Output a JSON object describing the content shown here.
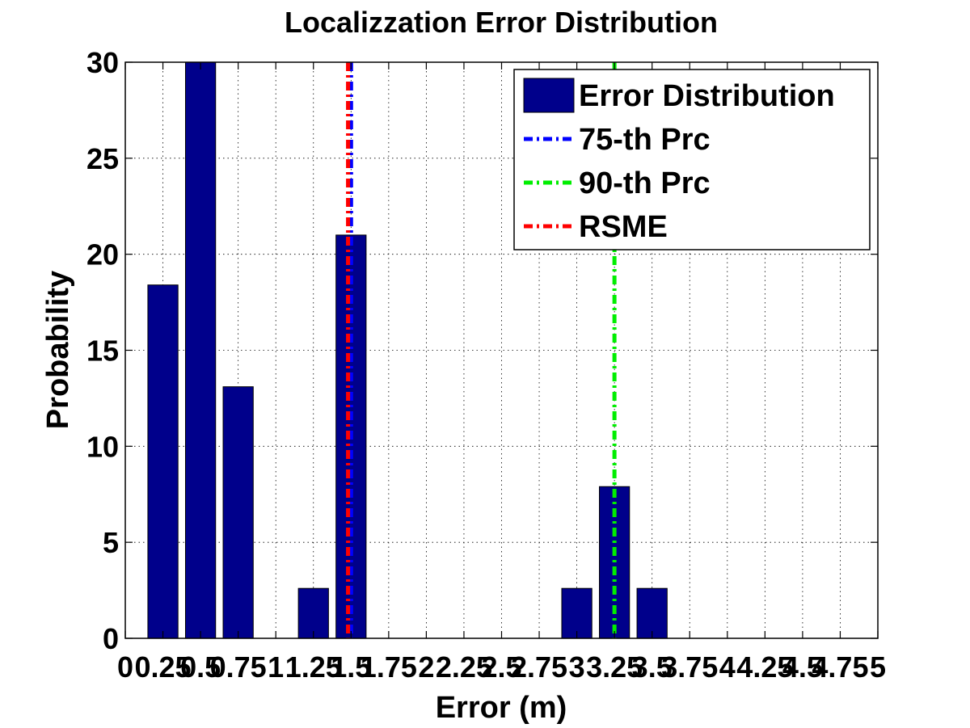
{
  "chart_data": {
    "type": "bar",
    "title": "Localizzation Error Distribution",
    "xlabel": "Error (m)",
    "ylabel": "Probability",
    "xlim": [
      0,
      5
    ],
    "ylim": [
      0,
      30
    ],
    "grid": true,
    "legend_position": "top-right",
    "x_ticks": [
      0,
      0.25,
      0.5,
      0.75,
      1,
      1.25,
      1.5,
      1.75,
      2,
      2.25,
      2.5,
      2.75,
      3,
      3.25,
      3.5,
      3.75,
      4,
      4.25,
      4.5,
      4.75,
      5
    ],
    "x_tick_labels": [
      "0",
      "0.25",
      "0.5",
      "0.75",
      "1",
      "1.25",
      "1.5",
      "1.75",
      "2",
      "2.25",
      "2.5",
      "2.75",
      "3",
      "3.25",
      "3.5",
      "3.75",
      "4",
      "4.25",
      "4.5",
      "4.75",
      "5"
    ],
    "y_ticks": [
      0,
      5,
      10,
      15,
      20,
      25,
      30
    ],
    "y_tick_labels": [
      "0",
      "5",
      "10",
      "15",
      "20",
      "25",
      "30"
    ],
    "bar_width": 0.2,
    "series": [
      {
        "name": "Error Distribution",
        "kind": "bar",
        "color": "#00008b",
        "x": [
          0.25,
          0.5,
          0.75,
          1.0,
          1.25,
          1.5,
          1.75,
          2.0,
          2.25,
          2.5,
          2.75,
          3.0,
          3.25,
          3.5
        ],
        "values": [
          18.4,
          30.0,
          13.1,
          0,
          2.6,
          21.0,
          0,
          0,
          0,
          0,
          0,
          2.6,
          7.9,
          2.6
        ]
      },
      {
        "name": "75-th Prc",
        "kind": "vline",
        "color": "#0000ff",
        "x": 1.5
      },
      {
        "name": "90-th Prc",
        "kind": "vline",
        "color": "#00ee00",
        "x": 3.25
      },
      {
        "name": "RSME",
        "kind": "vline",
        "color": "#ff0000",
        "x": 1.48
      }
    ]
  }
}
